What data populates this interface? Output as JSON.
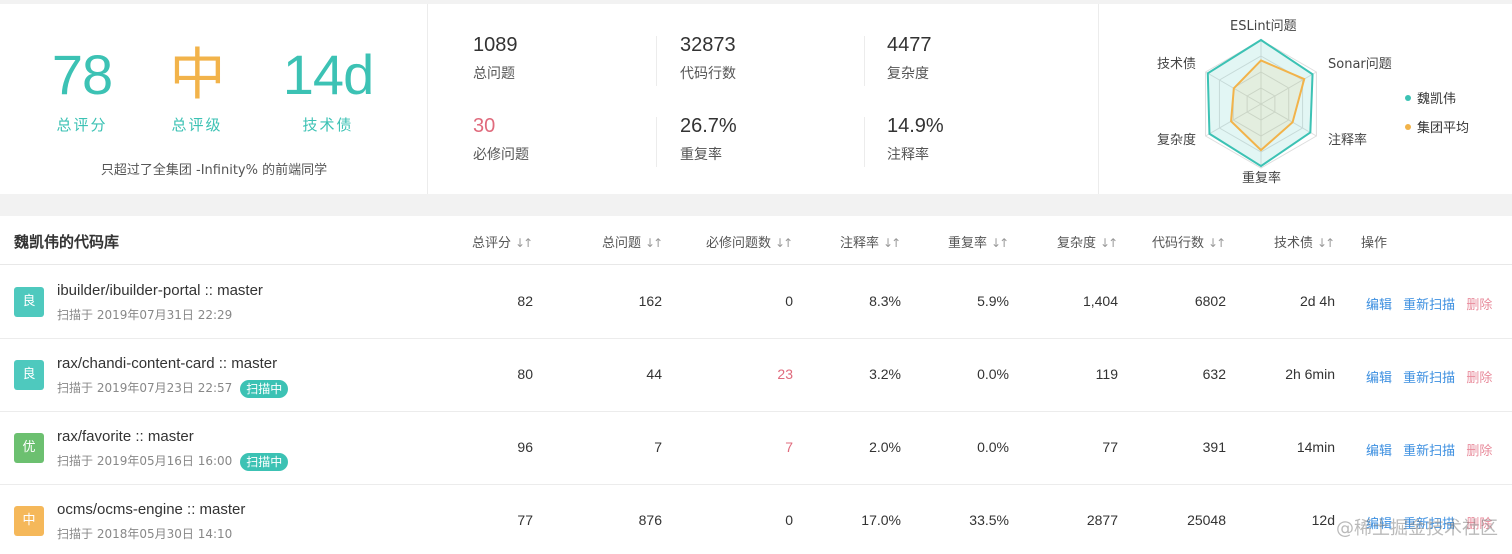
{
  "summary": {
    "score": {
      "value": "78",
      "label": "总评分"
    },
    "grade": {
      "value": "中",
      "label": "总评级"
    },
    "debt": {
      "value": "14d",
      "label": "技术债"
    },
    "note": "只超过了全集团 -Infinity% 的前端同学"
  },
  "metrics": [
    {
      "value": "1089",
      "label": "总问题"
    },
    {
      "value": "32873",
      "label": "代码行数"
    },
    {
      "value": "4477",
      "label": "复杂度"
    },
    {
      "value": "30",
      "label": "必修问题"
    },
    {
      "value": "26.7%",
      "label": "重复率"
    },
    {
      "value": "14.9%",
      "label": "注释率"
    }
  ],
  "radar": {
    "axes": [
      "ESLint问题",
      "Sonar问题",
      "注释率",
      "重复率",
      "复杂度",
      "技术债"
    ],
    "series": [
      {
        "name": "魏凯伟",
        "color": "#3cc2b4",
        "values": [
          1.0,
          0.93,
          0.89,
          0.97,
          0.93,
          0.96
        ]
      },
      {
        "name": "集团平均",
        "color": "#f2b34a",
        "values": [
          0.68,
          0.78,
          0.57,
          0.72,
          0.54,
          0.49
        ]
      }
    ]
  },
  "table": {
    "title": "魏凯伟的代码库",
    "columns": [
      "总评分",
      "总问题",
      "必修问题数",
      "注释率",
      "重复率",
      "复杂度",
      "代码行数",
      "技术债",
      "操作"
    ],
    "sort_icon": "↓↑",
    "ops": {
      "edit": "编辑",
      "rescan": "重新扫描",
      "delete": "删除"
    },
    "scanning_label": "扫描中",
    "rows": [
      {
        "badge": "良",
        "badge_color": "#4ec9be",
        "name": "ibuilder/ibuilder-portal :: master",
        "time": "扫描于 2019年07月31日 22:29",
        "scanning": false,
        "score": "82",
        "issues": "162",
        "must": "0",
        "must_red": false,
        "comment": "8.3%",
        "dup": "5.9%",
        "complexity": "1,404",
        "lines": "6802",
        "debt": "2d 4h"
      },
      {
        "badge": "良",
        "badge_color": "#4ec9be",
        "name": "rax/chandi-content-card :: master",
        "time": "扫描于 2019年07月23日 22:57",
        "scanning": true,
        "score": "80",
        "issues": "44",
        "must": "23",
        "must_red": true,
        "comment": "3.2%",
        "dup": "0.0%",
        "complexity": "119",
        "lines": "632",
        "debt": "2h 6min"
      },
      {
        "badge": "优",
        "badge_color": "#6cc070",
        "name": "rax/favorite :: master",
        "time": "扫描于 2019年05月16日 16:00",
        "scanning": true,
        "score": "96",
        "issues": "7",
        "must": "7",
        "must_red": true,
        "comment": "2.0%",
        "dup": "0.0%",
        "complexity": "77",
        "lines": "391",
        "debt": "14min"
      },
      {
        "badge": "中",
        "badge_color": "#f5b85a",
        "name": "ocms/ocms-engine :: master",
        "time": "扫描于 2018年05月30日 14:10",
        "scanning": false,
        "score": "77",
        "issues": "876",
        "must": "0",
        "must_red": false,
        "comment": "17.0%",
        "dup": "33.5%",
        "complexity": "2877",
        "lines": "25048",
        "debt": "12d"
      }
    ]
  },
  "watermark": "@稀土掘金技术社区"
}
